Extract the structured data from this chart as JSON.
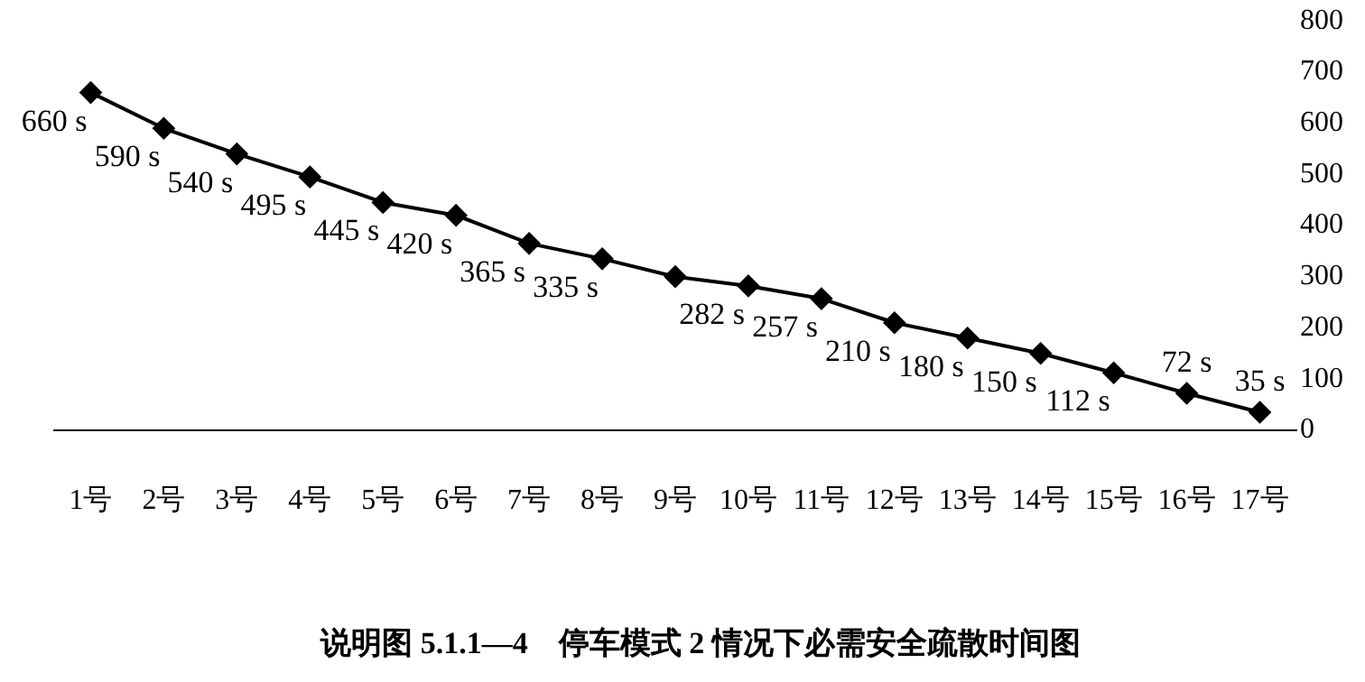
{
  "chart_data": {
    "type": "line",
    "title": "说明图 5.1.1—4　停车模式 2 情况下必需安全疏散时间图",
    "categories": [
      "1号",
      "2号",
      "3号",
      "4号",
      "5号",
      "6号",
      "7号",
      "8号",
      "9号",
      "10号",
      "11号",
      "12号",
      "13号",
      "14号",
      "15号",
      "16号",
      "17号"
    ],
    "values": [
      660,
      590,
      540,
      495,
      445,
      420,
      365,
      335,
      300,
      282,
      257,
      210,
      180,
      150,
      112,
      72,
      35
    ],
    "value_labels": [
      "660 s",
      "590 s",
      "540 s",
      "495 s",
      "445 s",
      "420 s",
      "365 s",
      "335 s",
      null,
      "282 s",
      "257 s",
      "210 s",
      "180 s",
      "150 s",
      "112 s",
      "72 s",
      "35 s"
    ],
    "color": "#000000",
    "marker": "diamond",
    "line_style": "solid",
    "grid": false,
    "legend": false,
    "ylim": [
      0,
      800
    ],
    "yticks": [
      0,
      100,
      200,
      300,
      400,
      500,
      600,
      700,
      800
    ]
  }
}
